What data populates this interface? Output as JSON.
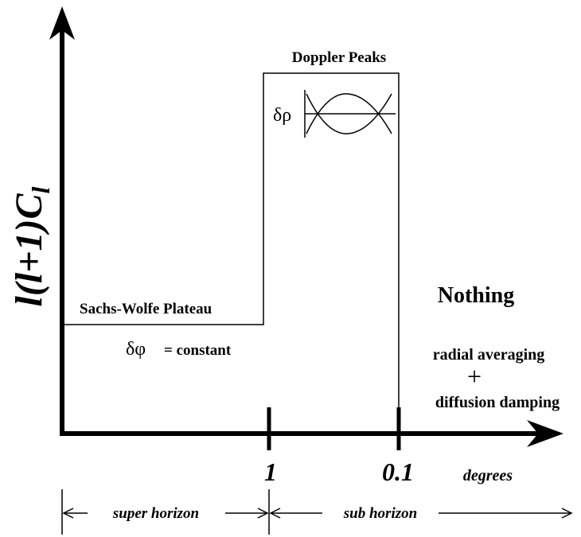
{
  "axes": {
    "y_label": "l(l+1)C",
    "y_label_sub": "l",
    "x_unit": "degrees",
    "x_ticks": [
      "1",
      "0.1"
    ]
  },
  "regions": {
    "doppler": {
      "title": "Doppler Peaks",
      "symbol": "δρ"
    },
    "sachs_wolfe": {
      "title": "Sachs-Wolfe Plateau",
      "symbol": "δφ",
      "note": "= constant"
    },
    "nothing": {
      "title": "Nothing",
      "line1": "radial averaging",
      "plus": "+",
      "line2": "diffusion damping"
    }
  },
  "horizons": {
    "super": "super horizon",
    "sub": "sub horizon"
  }
}
